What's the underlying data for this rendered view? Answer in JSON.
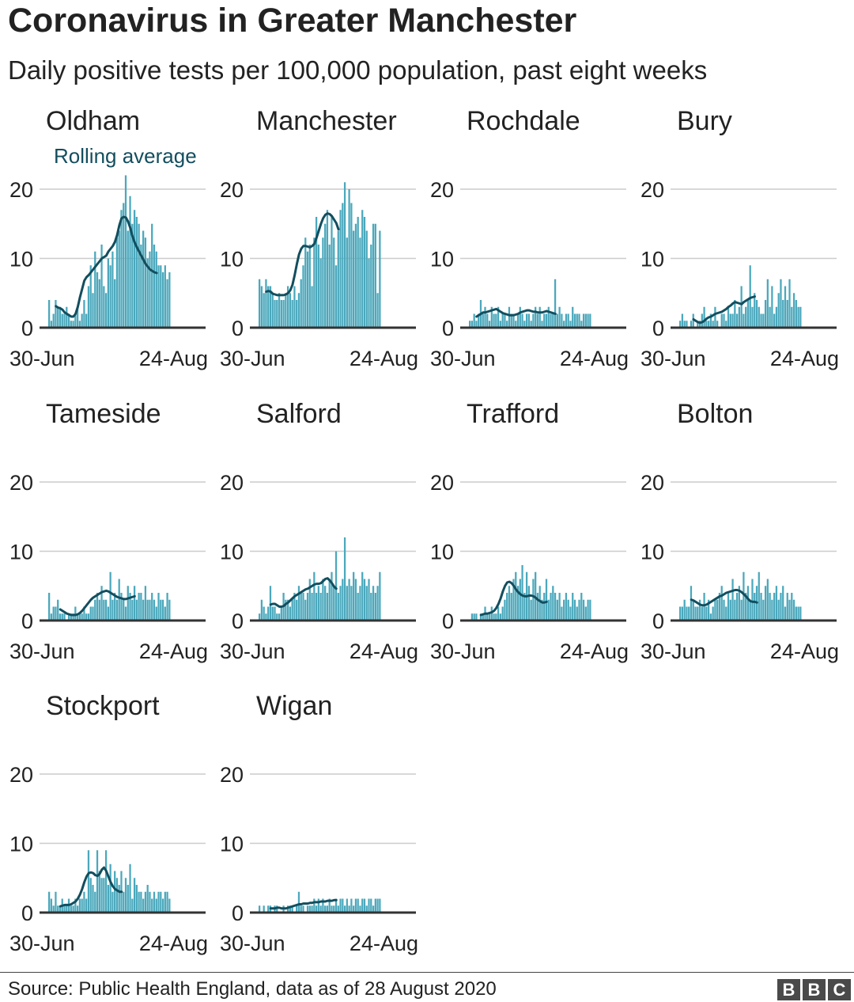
{
  "header": {
    "title": "Coronavirus in Greater Manchester",
    "subtitle": "Daily positive tests per 100,000 population, past eight weeks"
  },
  "footer": {
    "source": "Source: Public Health England, data as of 28 August 2020",
    "logo_letters": [
      "B",
      "B",
      "C"
    ]
  },
  "colors": {
    "bar": "#4ba8bc",
    "line": "#134e5e",
    "grid": "#cccccc",
    "axis": "#333333",
    "text": "#222222"
  },
  "chart_data": {
    "type": "bar",
    "annotation": "Rolling average",
    "y_ticks": [
      0,
      10,
      20
    ],
    "ylim": [
      0,
      22
    ],
    "x_tick_labels": [
      "30-Jun",
      "24-Aug"
    ],
    "days": 56,
    "panels": [
      {
        "name": "Oldham",
        "values": [
          4,
          1,
          2,
          4,
          3,
          3,
          2,
          2,
          3,
          2,
          1,
          1,
          2,
          3,
          1,
          2,
          4,
          2,
          6,
          9,
          5,
          11,
          8,
          7,
          12,
          6,
          5,
          10,
          9,
          11,
          7,
          13,
          14,
          17,
          18,
          22,
          14,
          19,
          15,
          17,
          16,
          15,
          12,
          14,
          13,
          10,
          11,
          15,
          12,
          11,
          9,
          9,
          8,
          9,
          7,
          8
        ],
        "avg": [
          null,
          null,
          null,
          3.1,
          2.9,
          2.8,
          2.6,
          2.2,
          2.0,
          1.8,
          1.6,
          1.6,
          2.0,
          3.0,
          4.4,
          5.6,
          6.8,
          7.3,
          7.6,
          8.0,
          8.4,
          8.8,
          9.2,
          9.6,
          10.0,
          10.2,
          10.4,
          11.0,
          11.4,
          11.8,
          12.4,
          13.4,
          14.8,
          15.8,
          16.0,
          15.9,
          15.3,
          14.4,
          13.2,
          12.3,
          11.6,
          11.0,
          10.4,
          9.8,
          9.2,
          8.8,
          8.4,
          8.2,
          8.0,
          7.9,
          null,
          null,
          null,
          null,
          null,
          null
        ]
      },
      {
        "name": "Manchester",
        "values": [
          7,
          6,
          5,
          7,
          6,
          6,
          5,
          4,
          4,
          5,
          4,
          4,
          5,
          6,
          5,
          4,
          6,
          4,
          5,
          7,
          9,
          13,
          11,
          12,
          6,
          13,
          16,
          12,
          10,
          13,
          15,
          17,
          12,
          16,
          13,
          9,
          14,
          17,
          18,
          21,
          13,
          20,
          18,
          14,
          15,
          16,
          13,
          17,
          16,
          14,
          10,
          12,
          15,
          15,
          5,
          14
        ],
        "avg": [
          null,
          null,
          null,
          5.2,
          5.3,
          5.2,
          4.9,
          4.8,
          4.7,
          4.7,
          4.7,
          4.7,
          4.8,
          5.0,
          5.4,
          6.2,
          7.6,
          9.2,
          10.6,
          11.4,
          11.8,
          11.8,
          11.7,
          11.6,
          11.8,
          12.1,
          13.0,
          14.0,
          15.0,
          15.8,
          16.3,
          16.5,
          16.4,
          16.1,
          15.6,
          15.1,
          14.2,
          null,
          null,
          null,
          null,
          null,
          null,
          null,
          null,
          null,
          null,
          null,
          null,
          null,
          null,
          null,
          null,
          null,
          null,
          null
        ]
      },
      {
        "name": "Rochdale",
        "values": [
          1,
          1,
          2,
          1,
          2,
          4,
          2,
          3,
          2,
          1,
          3,
          2,
          2,
          3,
          1,
          2,
          2,
          1,
          3,
          2,
          2,
          1,
          2,
          3,
          2,
          1,
          2,
          2,
          1,
          2,
          3,
          2,
          3,
          1,
          2,
          2,
          3,
          2,
          2,
          7,
          2,
          3,
          2,
          1,
          2,
          2,
          1,
          3,
          2,
          2,
          2,
          1,
          2,
          2,
          2,
          2
        ],
        "avg": [
          null,
          null,
          null,
          1.6,
          1.8,
          2.0,
          2.2,
          2.2,
          2.3,
          2.4,
          2.5,
          2.6,
          2.7,
          2.5,
          2.3,
          2.1,
          2.0,
          1.9,
          1.8,
          1.8,
          1.8,
          1.9,
          2.0,
          2.2,
          2.3,
          2.4,
          2.5,
          2.5,
          2.4,
          2.3,
          2.3,
          2.2,
          2.2,
          2.2,
          2.3,
          2.4,
          2.3,
          2.2,
          2.1,
          2.0,
          null,
          null,
          null,
          null,
          null,
          null,
          null,
          null,
          null,
          null,
          null,
          null,
          null,
          null,
          null,
          null
        ]
      },
      {
        "name": "Bury",
        "values": [
          1,
          2,
          1,
          1,
          0,
          1,
          2,
          0,
          1,
          1,
          2,
          3,
          1,
          1,
          2,
          1,
          3,
          1,
          0,
          2,
          2,
          1,
          3,
          2,
          2,
          4,
          2,
          3,
          6,
          2,
          3,
          4,
          9,
          3,
          5,
          4,
          3,
          2,
          2,
          4,
          7,
          3,
          6,
          2,
          3,
          5,
          7,
          4,
          6,
          4,
          7,
          3,
          5,
          4,
          3,
          3
        ],
        "avg": [
          null,
          null,
          null,
          null,
          null,
          null,
          1.2,
          1.0,
          0.8,
          0.7,
          0.8,
          1.0,
          1.3,
          1.5,
          1.6,
          1.8,
          2.0,
          2.1,
          2.2,
          2.3,
          2.5,
          2.7,
          3.0,
          3.2,
          3.5,
          3.7,
          3.6,
          3.5,
          3.4,
          3.7,
          3.9,
          4.1,
          4.3,
          4.4,
          4.5,
          null,
          null,
          null,
          null,
          null,
          null,
          null,
          null,
          null,
          null,
          null,
          null,
          null,
          null,
          null,
          null,
          null,
          null,
          null,
          null,
          null
        ]
      },
      {
        "name": "Tameside",
        "values": [
          4,
          1,
          2,
          2,
          3,
          1,
          1,
          1,
          0,
          1,
          1,
          1,
          2,
          1,
          1,
          1,
          2,
          1,
          1,
          2,
          2,
          3,
          4,
          3,
          5,
          3,
          3,
          2,
          7,
          3,
          4,
          3,
          6,
          4,
          3,
          2,
          5,
          4,
          3,
          5,
          3,
          4,
          4,
          3,
          5,
          3,
          3,
          4,
          3,
          2,
          4,
          3,
          3,
          2,
          4,
          3
        ],
        "avg": [
          null,
          null,
          null,
          null,
          null,
          1.6,
          1.4,
          1.2,
          1.0,
          0.9,
          0.8,
          0.8,
          0.8,
          0.9,
          1.1,
          1.4,
          1.8,
          2.2,
          2.6,
          3.0,
          3.3,
          3.5,
          3.7,
          3.9,
          4.1,
          4.2,
          4.3,
          4.2,
          4.0,
          3.8,
          3.6,
          3.4,
          3.3,
          3.2,
          3.1,
          3.1,
          3.2,
          3.3,
          3.4,
          3.5,
          null,
          null,
          null,
          null,
          null,
          null,
          null,
          null,
          null,
          null,
          null,
          null,
          null,
          null,
          null,
          null
        ]
      },
      {
        "name": "Salford",
        "values": [
          1,
          3,
          2,
          1,
          2,
          5,
          2,
          2,
          1,
          1,
          2,
          4,
          3,
          3,
          2,
          3,
          4,
          3,
          5,
          4,
          4,
          3,
          4,
          6,
          4,
          7,
          4,
          5,
          4,
          6,
          5,
          4,
          6,
          7,
          5,
          10,
          4,
          5,
          6,
          12,
          5,
          6,
          5,
          7,
          6,
          4,
          5,
          7,
          6,
          5,
          6,
          4,
          5,
          4,
          5,
          7
        ],
        "avg": [
          null,
          null,
          null,
          null,
          null,
          2.3,
          2.4,
          2.4,
          2.2,
          2.0,
          2.0,
          2.1,
          2.4,
          2.6,
          2.9,
          3.2,
          3.5,
          3.7,
          3.9,
          4.1,
          4.3,
          4.5,
          4.6,
          4.8,
          5.0,
          5.2,
          5.3,
          5.3,
          5.4,
          5.7,
          6.0,
          6.1,
          5.8,
          5.4,
          4.9,
          4.6,
          null,
          null,
          null,
          null,
          null,
          null,
          null,
          null,
          null,
          null,
          null,
          null,
          null,
          null,
          null,
          null,
          null,
          null,
          null,
          null
        ]
      },
      {
        "name": "Trafford",
        "values": [
          0,
          1,
          1,
          1,
          0,
          1,
          1,
          2,
          1,
          1,
          2,
          1,
          1,
          2,
          1,
          2,
          3,
          4,
          5,
          4,
          6,
          7,
          5,
          6,
          8,
          4,
          7,
          5,
          3,
          6,
          7,
          4,
          5,
          3,
          4,
          6,
          3,
          4,
          5,
          4,
          3,
          4,
          2,
          3,
          4,
          3,
          2,
          4,
          3,
          2,
          3,
          4,
          3,
          2,
          3,
          3
        ],
        "avg": [
          null,
          null,
          null,
          null,
          null,
          0.8,
          0.9,
          1.0,
          1.0,
          1.1,
          1.2,
          1.4,
          1.8,
          2.4,
          3.2,
          4.2,
          5.0,
          5.5,
          5.6,
          5.4,
          5.0,
          4.5,
          4.1,
          3.8,
          3.6,
          3.5,
          3.5,
          3.6,
          3.6,
          3.5,
          3.3,
          3.0,
          2.8,
          2.6,
          2.6,
          2.7,
          null,
          null,
          null,
          null,
          null,
          null,
          null,
          null,
          null,
          null,
          null,
          null,
          null,
          null,
          null,
          null,
          null,
          null,
          null,
          null
        ]
      },
      {
        "name": "Bolton",
        "values": [
          2,
          2,
          3,
          2,
          2,
          5,
          3,
          2,
          2,
          3,
          2,
          4,
          2,
          3,
          1,
          2,
          3,
          3,
          4,
          5,
          3,
          2,
          4,
          3,
          6,
          3,
          4,
          5,
          3,
          7,
          4,
          5,
          3,
          6,
          4,
          5,
          7,
          4,
          3,
          5,
          6,
          4,
          3,
          4,
          5,
          3,
          4,
          5,
          2,
          4,
          3,
          4,
          3,
          2,
          2,
          2
        ],
        "avg": [
          null,
          null,
          null,
          null,
          null,
          3.0,
          2.9,
          2.7,
          2.5,
          2.3,
          2.2,
          2.2,
          2.3,
          2.5,
          2.7,
          2.9,
          3.1,
          3.3,
          3.5,
          3.6,
          3.8,
          4.0,
          4.1,
          4.2,
          4.3,
          4.4,
          4.4,
          4.3,
          4.1,
          3.8,
          3.5,
          3.1,
          2.8,
          2.7,
          2.7,
          2.6,
          null,
          null,
          null,
          null,
          null,
          null,
          null,
          null,
          null,
          null,
          null,
          null,
          null,
          null,
          null,
          null,
          null,
          null,
          null,
          null
        ]
      },
      {
        "name": "Stockport",
        "values": [
          3,
          2,
          1,
          3,
          1,
          1,
          2,
          1,
          1,
          2,
          1,
          1,
          2,
          1,
          2,
          2,
          3,
          2,
          9,
          5,
          4,
          3,
          9,
          6,
          5,
          5,
          9,
          4,
          7,
          3,
          6,
          5,
          4,
          6,
          3,
          5,
          4,
          7,
          2,
          5,
          4,
          3,
          3,
          2,
          3,
          4,
          3,
          2,
          3,
          2,
          3,
          3,
          2,
          3,
          3,
          2
        ],
        "avg": [
          null,
          null,
          null,
          null,
          null,
          0.9,
          1.0,
          1.1,
          1.1,
          1.1,
          1.2,
          1.4,
          1.6,
          2.0,
          2.6,
          3.4,
          4.4,
          5.2,
          5.7,
          5.8,
          5.7,
          5.4,
          5.3,
          5.6,
          6.2,
          6.5,
          6.0,
          5.2,
          4.4,
          3.8,
          3.4,
          3.2,
          3.0,
          3.0,
          null,
          null,
          null,
          null,
          null,
          null,
          null,
          null,
          null,
          null,
          null,
          null,
          null,
          null,
          null,
          null,
          null,
          null,
          null,
          null,
          null,
          null
        ]
      },
      {
        "name": "Wigan",
        "values": [
          1,
          0,
          1,
          0,
          1,
          1,
          0,
          1,
          1,
          0,
          0,
          1,
          0,
          1,
          1,
          1,
          0,
          1,
          3,
          1,
          1,
          0,
          1,
          1,
          1,
          2,
          1,
          2,
          1,
          2,
          1,
          1,
          2,
          1,
          1,
          2,
          1,
          2,
          2,
          1,
          2,
          1,
          2,
          1,
          2,
          2,
          1,
          2,
          2,
          1,
          2,
          2,
          1,
          2,
          2,
          2
        ],
        "avg": [
          null,
          null,
          null,
          null,
          null,
          0.6,
          0.6,
          0.6,
          0.7,
          0.7,
          0.6,
          0.6,
          0.6,
          0.7,
          0.8,
          0.9,
          1.0,
          1.1,
          1.2,
          1.2,
          1.3,
          1.3,
          1.3,
          1.4,
          1.4,
          1.5,
          1.5,
          1.5,
          1.6,
          1.6,
          1.6,
          1.7,
          1.7,
          1.7,
          1.8,
          1.8,
          null,
          null,
          null,
          null,
          null,
          null,
          null,
          null,
          null,
          null,
          null,
          null,
          null,
          null,
          null,
          null,
          null,
          null,
          null,
          null
        ]
      }
    ]
  }
}
